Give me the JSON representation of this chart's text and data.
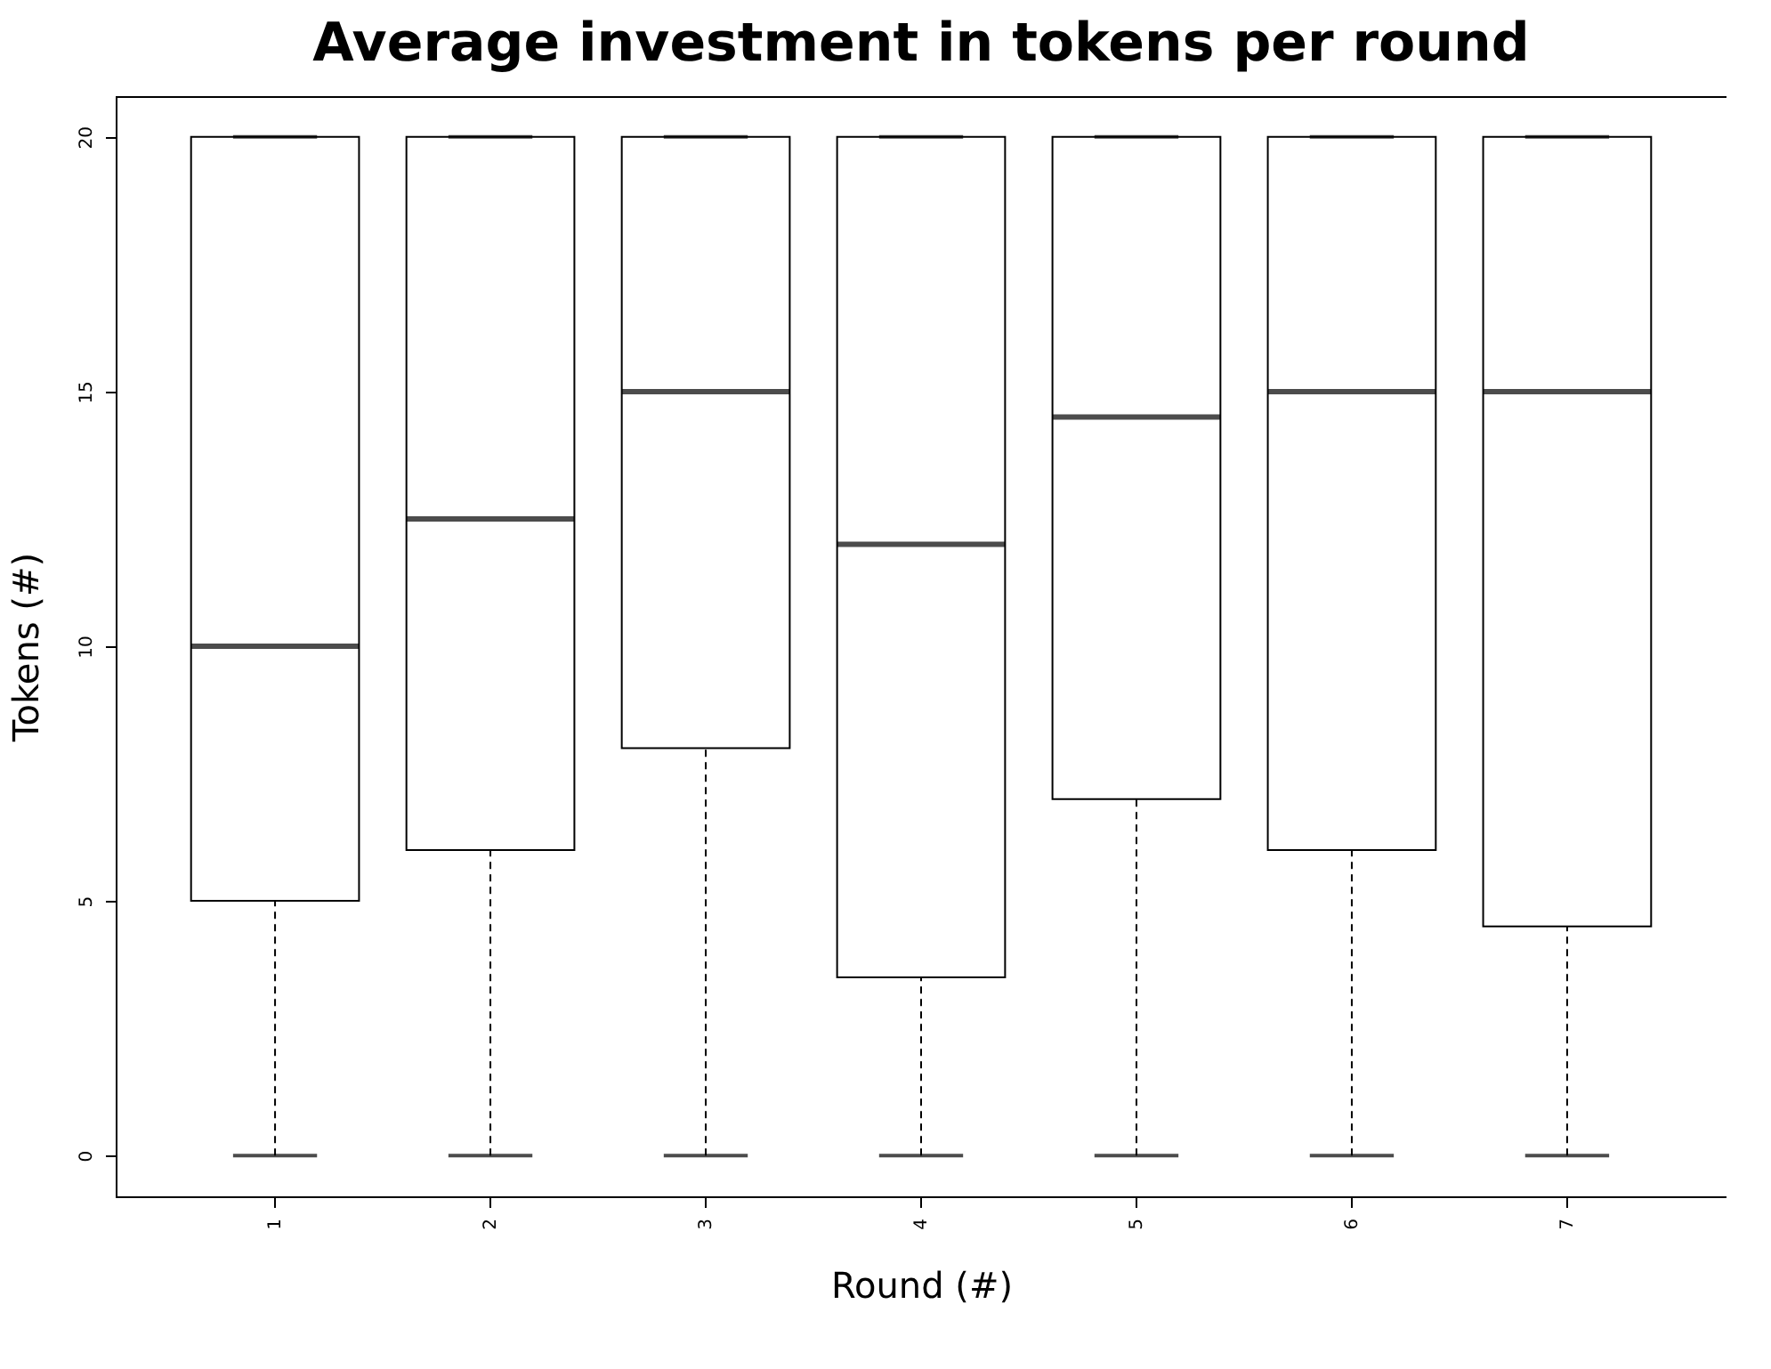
{
  "chart_data": {
    "type": "box",
    "title": "Average investment in tokens per round",
    "xlabel": "Round (#)",
    "ylabel": "Tokens (#)",
    "categories": [
      "1",
      "2",
      "3",
      "4",
      "5",
      "6",
      "7"
    ],
    "boxes": [
      {
        "low": 0,
        "q1": 5,
        "median": 10,
        "q3": 20,
        "high": 20
      },
      {
        "low": 0,
        "q1": 6,
        "median": 12.5,
        "q3": 20,
        "high": 20
      },
      {
        "low": 0,
        "q1": 8,
        "median": 15,
        "q3": 20,
        "high": 20
      },
      {
        "low": 0,
        "q1": 3.5,
        "median": 12,
        "q3": 20,
        "high": 20
      },
      {
        "low": 0,
        "q1": 7,
        "median": 14.5,
        "q3": 20,
        "high": 20
      },
      {
        "low": 0,
        "q1": 6,
        "median": 15,
        "q3": 20,
        "high": 20
      },
      {
        "low": 0,
        "q1": 4.5,
        "median": 15,
        "q3": 20,
        "high": 20
      }
    ],
    "ylim": [
      -0.8,
      20.8
    ],
    "yticks": [
      0,
      5,
      10,
      15,
      20
    ]
  }
}
